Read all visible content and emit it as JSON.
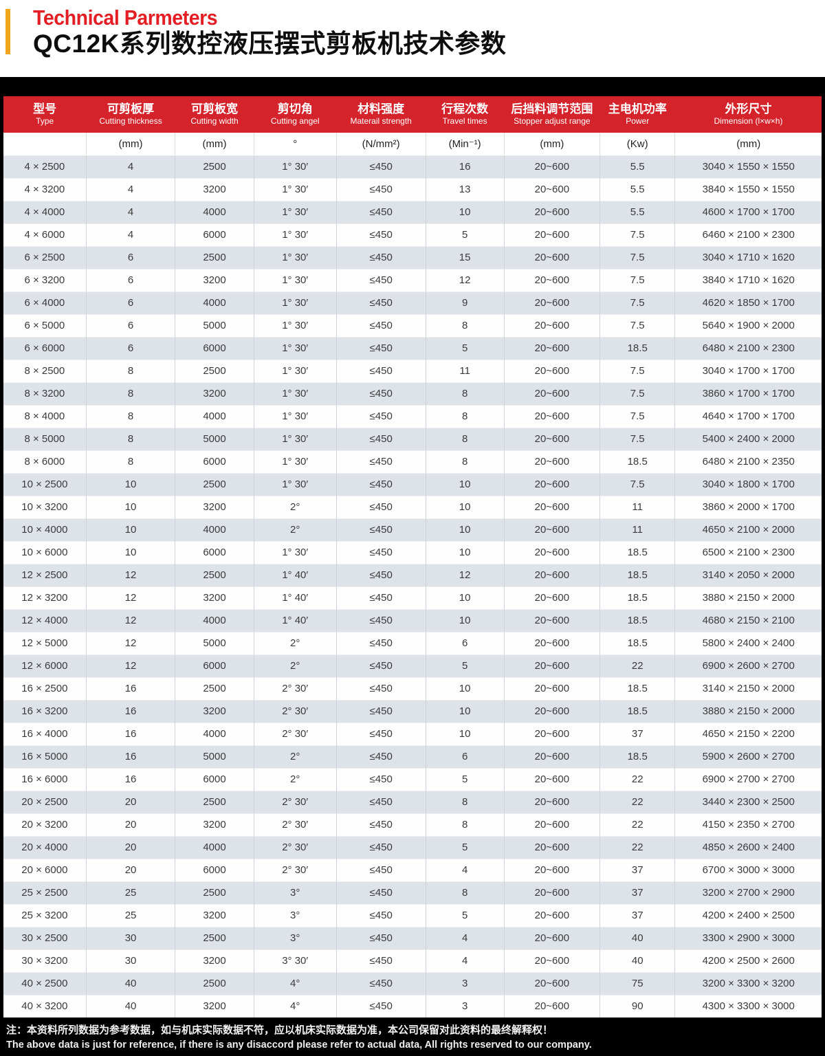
{
  "header": {
    "title_en": "Technical Parmeters",
    "title_cn": "QC12K系列数控液压摆式剪板机技术参数"
  },
  "colors": {
    "accent_red": "#d5232b",
    "accent_yellow": "#f0a71e",
    "stripe_gray": "#dee2e9",
    "footer_black": "#000000"
  },
  "table": {
    "columns": [
      {
        "cn": "型号",
        "en": "Type",
        "unit": ""
      },
      {
        "cn": "可剪板厚",
        "en": "Cutting thickness",
        "unit": "(mm)"
      },
      {
        "cn": "可剪板宽",
        "en": "Cutting width",
        "unit": "(mm)"
      },
      {
        "cn": "剪切角",
        "en": "Cutting angel",
        "unit": "°"
      },
      {
        "cn": "材料强度",
        "en": "Materail strength",
        "unit": "(N/mm²)"
      },
      {
        "cn": "行程次数",
        "en": "Travel times",
        "unit": "(Min⁻¹)"
      },
      {
        "cn": "后挡料调节范围",
        "en": "Stopper adjust range",
        "unit": "(mm)"
      },
      {
        "cn": "主电机功率",
        "en": "Power",
        "unit": "(Kw)"
      },
      {
        "cn": "外形尺寸",
        "en": "Dimension (l×w×h)",
        "unit": "(mm)"
      }
    ],
    "rows": [
      [
        "4 × 2500",
        "4",
        "2500",
        "1°  30′",
        "≤450",
        "16",
        "20~600",
        "5.5",
        "3040 × 1550 × 1550"
      ],
      [
        "4 × 3200",
        "4",
        "3200",
        "1°  30′",
        "≤450",
        "13",
        "20~600",
        "5.5",
        "3840 × 1550 × 1550"
      ],
      [
        "4 × 4000",
        "4",
        "4000",
        "1°  30′",
        "≤450",
        "10",
        "20~600",
        "5.5",
        "4600 × 1700 × 1700"
      ],
      [
        "4 × 6000",
        "4",
        "6000",
        "1°  30′",
        "≤450",
        "5",
        "20~600",
        "7.5",
        "6460 × 2100 × 2300"
      ],
      [
        "6 × 2500",
        "6",
        "2500",
        "1°  30′",
        "≤450",
        "15",
        "20~600",
        "7.5",
        "3040 × 1710 × 1620"
      ],
      [
        "6 × 3200",
        "6",
        "3200",
        "1°  30′",
        "≤450",
        "12",
        "20~600",
        "7.5",
        "3840 × 1710 × 1620"
      ],
      [
        "6 × 4000",
        "6",
        "4000",
        "1°  30′",
        "≤450",
        "9",
        "20~600",
        "7.5",
        "4620 × 1850 × 1700"
      ],
      [
        "6 × 5000",
        "6",
        "5000",
        "1°  30′",
        "≤450",
        "8",
        "20~600",
        "7.5",
        "5640 × 1900 × 2000"
      ],
      [
        "6 × 6000",
        "6",
        "6000",
        "1°  30′",
        "≤450",
        "5",
        "20~600",
        "18.5",
        "6480 × 2100 × 2300"
      ],
      [
        "8 × 2500",
        "8",
        "2500",
        "1°  30′",
        "≤450",
        "11",
        "20~600",
        "7.5",
        "3040 × 1700 × 1700"
      ],
      [
        "8 × 3200",
        "8",
        "3200",
        "1°  30′",
        "≤450",
        "8",
        "20~600",
        "7.5",
        "3860 × 1700 × 1700"
      ],
      [
        "8 × 4000",
        "8",
        "4000",
        "1°  30′",
        "≤450",
        "8",
        "20~600",
        "7.5",
        "4640 × 1700 × 1700"
      ],
      [
        "8 × 5000",
        "8",
        "5000",
        "1°  30′",
        "≤450",
        "8",
        "20~600",
        "7.5",
        "5400 × 2400 × 2000"
      ],
      [
        "8 × 6000",
        "8",
        "6000",
        "1°  30′",
        "≤450",
        "8",
        "20~600",
        "18.5",
        "6480 × 2100 × 2350"
      ],
      [
        "10 × 2500",
        "10",
        "2500",
        "1°  30′",
        "≤450",
        "10",
        "20~600",
        "7.5",
        "3040 × 1800 × 1700"
      ],
      [
        "10 × 3200",
        "10",
        "3200",
        "2°",
        "≤450",
        "10",
        "20~600",
        "11",
        "3860 × 2000 × 1700"
      ],
      [
        "10 × 4000",
        "10",
        "4000",
        "2°",
        "≤450",
        "10",
        "20~600",
        "11",
        "4650 × 2100 × 2000"
      ],
      [
        "10 × 6000",
        "10",
        "6000",
        "1°  30′",
        "≤450",
        "10",
        "20~600",
        "18.5",
        "6500 × 2100 × 2300"
      ],
      [
        "12 × 2500",
        "12",
        "2500",
        "1°  40′",
        "≤450",
        "12",
        "20~600",
        "18.5",
        "3140 × 2050 × 2000"
      ],
      [
        "12 × 3200",
        "12",
        "3200",
        "1°  40′",
        "≤450",
        "10",
        "20~600",
        "18.5",
        "3880 × 2150 × 2000"
      ],
      [
        "12 × 4000",
        "12",
        "4000",
        "1°  40′",
        "≤450",
        "10",
        "20~600",
        "18.5",
        "4680 × 2150 × 2100"
      ],
      [
        "12 × 5000",
        "12",
        "5000",
        "2°",
        "≤450",
        "6",
        "20~600",
        "18.5",
        "5800 × 2400 × 2400"
      ],
      [
        "12 × 6000",
        "12",
        "6000",
        "2°",
        "≤450",
        "5",
        "20~600",
        "22",
        "6900 × 2600 × 2700"
      ],
      [
        "16 × 2500",
        "16",
        "2500",
        "2°  30′",
        "≤450",
        "10",
        "20~600",
        "18.5",
        "3140 × 2150 × 2000"
      ],
      [
        "16 × 3200",
        "16",
        "3200",
        "2°  30′",
        "≤450",
        "10",
        "20~600",
        "18.5",
        "3880 × 2150 × 2000"
      ],
      [
        "16 × 4000",
        "16",
        "4000",
        "2°  30′",
        "≤450",
        "10",
        "20~600",
        "37",
        "4650 × 2150 × 2200"
      ],
      [
        "16 × 5000",
        "16",
        "5000",
        "2°",
        "≤450",
        "6",
        "20~600",
        "18.5",
        "5900 × 2600 × 2700"
      ],
      [
        "16 × 6000",
        "16",
        "6000",
        "2°",
        "≤450",
        "5",
        "20~600",
        "22",
        "6900 × 2700 × 2700"
      ],
      [
        "20 × 2500",
        "20",
        "2500",
        "2°  30′",
        "≤450",
        "8",
        "20~600",
        "22",
        "3440 × 2300 × 2500"
      ],
      [
        "20 × 3200",
        "20",
        "3200",
        "2°  30′",
        "≤450",
        "8",
        "20~600",
        "22",
        "4150 × 2350 × 2700"
      ],
      [
        "20 × 4000",
        "20",
        "4000",
        "2°  30′",
        "≤450",
        "5",
        "20~600",
        "22",
        "4850 × 2600 × 2400"
      ],
      [
        "20 × 6000",
        "20",
        "6000",
        "2°  30′",
        "≤450",
        "4",
        "20~600",
        "37",
        "6700 × 3000 × 3000"
      ],
      [
        "25 × 2500",
        "25",
        "2500",
        "3°",
        "≤450",
        "8",
        "20~600",
        "37",
        "3200 × 2700 × 2900"
      ],
      [
        "25 × 3200",
        "25",
        "3200",
        "3°",
        "≤450",
        "5",
        "20~600",
        "37",
        "4200 × 2400 × 2500"
      ],
      [
        "30 × 2500",
        "30",
        "2500",
        "3°",
        "≤450",
        "4",
        "20~600",
        "40",
        "3300 × 2900 × 3000"
      ],
      [
        "30 × 3200",
        "30",
        "3200",
        "3°  30′",
        "≤450",
        "4",
        "20~600",
        "40",
        "4200 × 2500 × 2600"
      ],
      [
        "40 × 2500",
        "40",
        "2500",
        "4°",
        "≤450",
        "3",
        "20~600",
        "75",
        "3200 × 3300 × 3200"
      ],
      [
        "40 × 3200",
        "40",
        "3200",
        "4°",
        "≤450",
        "3",
        "20~600",
        "90",
        "4300 × 3300 × 3000"
      ]
    ]
  },
  "footer": {
    "note_cn": "注：本资料所列数据为参考数据，如与机床实际数据不符，应以机床实际数据为准，本公司保留对此资料的最终解释权！",
    "note_en": "The above data is just for reference, if there is any disaccord please refer to actual data, All rights reserved to our company."
  }
}
